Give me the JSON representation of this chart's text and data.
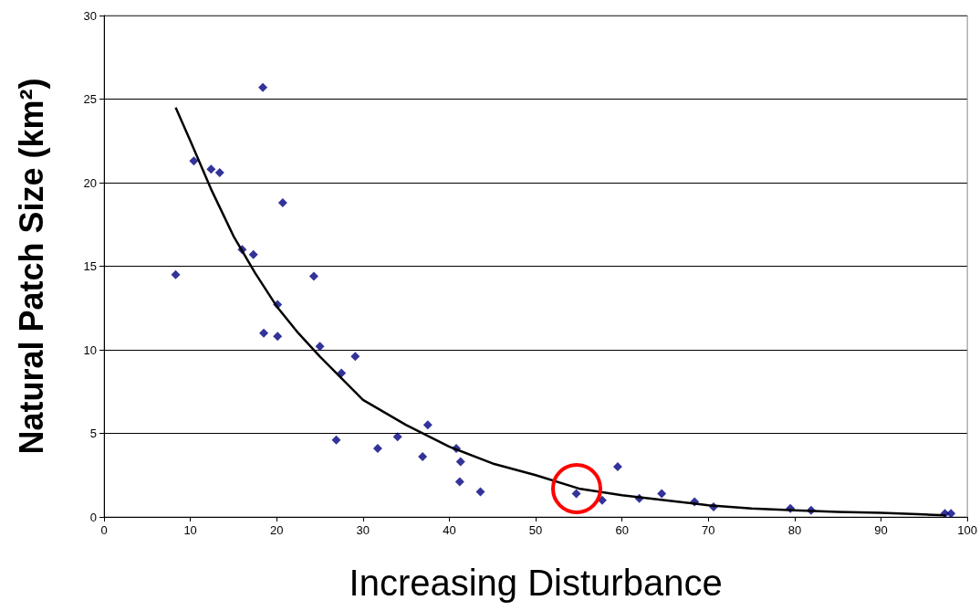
{
  "chart_data": {
    "type": "scatter",
    "xlabel": "Increasing Disturbance",
    "ylabel": "Natural Patch Size (km²)",
    "xlim": [
      0,
      100
    ],
    "xticks": [
      0,
      10,
      20,
      30,
      40,
      50,
      60,
      70,
      80,
      90,
      100
    ],
    "ylim": [
      0,
      30
    ],
    "yticks": [
      0,
      5,
      10,
      15,
      20,
      25,
      30
    ],
    "grid": "y",
    "series": [
      {
        "marker": "diamond",
        "color": "#000080",
        "x": [
          8.3,
          10.4,
          12.4,
          13.4,
          18.4,
          20.7,
          16.0,
          17.3,
          24.3,
          20.1,
          18.5,
          20.1,
          25.0,
          29.1,
          27.5,
          26.9,
          31.7,
          34.0,
          37.5,
          36.9,
          40.8,
          41.3,
          41.2,
          43.6,
          54.7,
          57.7,
          59.5,
          62.0,
          64.6,
          68.4,
          70.6,
          79.5,
          81.9,
          97.4,
          98.1
        ],
        "values": [
          14.5,
          21.3,
          20.8,
          20.6,
          25.7,
          18.8,
          16.0,
          15.7,
          14.4,
          12.7,
          11.0,
          10.8,
          10.2,
          9.6,
          8.6,
          4.6,
          4.1,
          4.8,
          5.5,
          3.6,
          4.1,
          3.3,
          2.1,
          1.5,
          1.4,
          1.0,
          3.0,
          1.1,
          1.4,
          0.9,
          0.6,
          0.5,
          0.4,
          0.2,
          0.2
        ]
      },
      {
        "type": "line",
        "marker": "none",
        "line_style": "solid",
        "color": "#000000",
        "x": [
          8.3,
          10,
          12.5,
          15,
          17.5,
          20,
          22.5,
          25,
          27.5,
          30,
          35,
          40,
          45,
          50,
          55,
          60,
          65,
          70,
          75,
          80,
          85,
          90,
          95,
          97.5
        ],
        "values": [
          24.5,
          22.5,
          19.5,
          16.8,
          14.6,
          12.6,
          11.0,
          9.6,
          8.3,
          7.0,
          5.5,
          4.2,
          3.2,
          2.5,
          1.7,
          1.3,
          1.0,
          0.7,
          0.5,
          0.4,
          0.3,
          0.25,
          0.15,
          0.1
        ]
      }
    ]
  }
}
